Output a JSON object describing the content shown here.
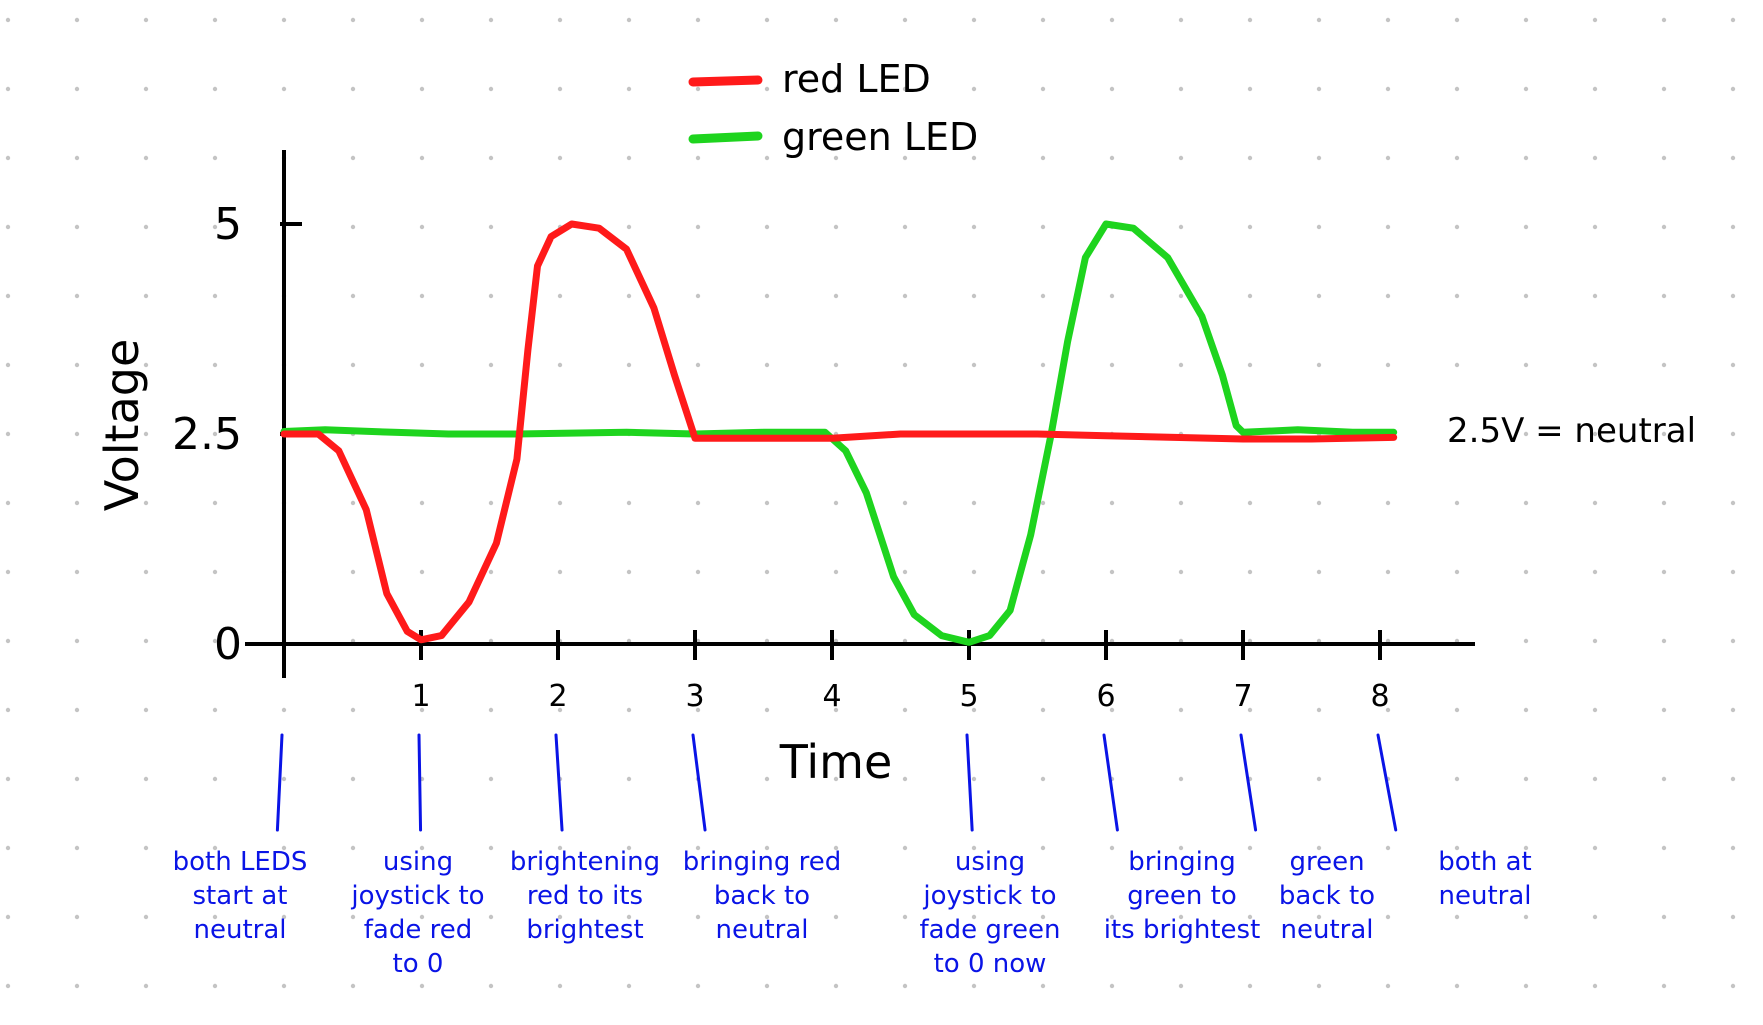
{
  "chart_data": {
    "type": "line",
    "title": "",
    "xlabel": "Time",
    "ylabel": "Voltage",
    "xlim": [
      0,
      8.5
    ],
    "ylim": [
      0,
      5
    ],
    "x_ticks": [
      {
        "value": 1,
        "label": "1"
      },
      {
        "value": 2,
        "label": "2"
      },
      {
        "value": 3,
        "label": "3"
      },
      {
        "value": 4,
        "label": "4"
      },
      {
        "value": 5,
        "label": "5"
      },
      {
        "value": 6,
        "label": "6"
      },
      {
        "value": 7,
        "label": "7"
      },
      {
        "value": 8,
        "label": "8"
      }
    ],
    "y_ticks": [
      {
        "value": 0,
        "label": "0"
      },
      {
        "value": 2.5,
        "label": "2.5"
      },
      {
        "value": 5,
        "label": "5"
      }
    ],
    "grid": "dotted",
    "legend": "top",
    "series": [
      {
        "name": "red LED",
        "color": "#ff1a1a",
        "points": [
          [
            0,
            2.5
          ],
          [
            0.25,
            2.5
          ],
          [
            0.4,
            2.3
          ],
          [
            0.6,
            1.6
          ],
          [
            0.75,
            0.6
          ],
          [
            0.9,
            0.15
          ],
          [
            1.0,
            0.05
          ],
          [
            1.15,
            0.1
          ],
          [
            1.35,
            0.5
          ],
          [
            1.55,
            1.2
          ],
          [
            1.7,
            2.2
          ],
          [
            1.78,
            3.5
          ],
          [
            1.85,
            4.5
          ],
          [
            1.95,
            4.85
          ],
          [
            2.1,
            5.0
          ],
          [
            2.3,
            4.95
          ],
          [
            2.5,
            4.7
          ],
          [
            2.7,
            4.0
          ],
          [
            2.85,
            3.2
          ],
          [
            2.95,
            2.7
          ],
          [
            3.0,
            2.45
          ],
          [
            3.5,
            2.45
          ],
          [
            4.0,
            2.45
          ],
          [
            4.5,
            2.5
          ],
          [
            5.0,
            2.5
          ],
          [
            5.5,
            2.5
          ],
          [
            6.0,
            2.48
          ],
          [
            6.5,
            2.46
          ],
          [
            7.0,
            2.44
          ],
          [
            7.5,
            2.44
          ],
          [
            8.1,
            2.46
          ]
        ]
      },
      {
        "name": "green LED",
        "color": "#1ed41e",
        "points": [
          [
            0,
            2.53
          ],
          [
            0.3,
            2.55
          ],
          [
            0.8,
            2.52
          ],
          [
            1.2,
            2.5
          ],
          [
            1.7,
            2.5
          ],
          [
            2.5,
            2.52
          ],
          [
            3.0,
            2.5
          ],
          [
            3.5,
            2.52
          ],
          [
            3.95,
            2.52
          ],
          [
            4.1,
            2.3
          ],
          [
            4.25,
            1.8
          ],
          [
            4.45,
            0.8
          ],
          [
            4.6,
            0.35
          ],
          [
            4.8,
            0.1
          ],
          [
            5.0,
            0.02
          ],
          [
            5.15,
            0.1
          ],
          [
            5.3,
            0.4
          ],
          [
            5.45,
            1.3
          ],
          [
            5.6,
            2.5
          ],
          [
            5.72,
            3.6
          ],
          [
            5.85,
            4.6
          ],
          [
            6.0,
            5.0
          ],
          [
            6.2,
            4.95
          ],
          [
            6.45,
            4.6
          ],
          [
            6.7,
            3.9
          ],
          [
            6.85,
            3.2
          ],
          [
            6.95,
            2.6
          ],
          [
            7.0,
            2.52
          ],
          [
            7.4,
            2.55
          ],
          [
            7.8,
            2.52
          ],
          [
            8.1,
            2.52
          ]
        ]
      }
    ],
    "annotations": [
      {
        "text": "2.5V = neutral",
        "color": "#000000"
      },
      {
        "x": 0,
        "lines": [
          "both LEDS",
          "start at",
          "neutral"
        ],
        "color": "#0a14e6"
      },
      {
        "x": 1,
        "lines": [
          "using",
          "joystick to",
          "fade red",
          "to 0"
        ],
        "color": "#0a14e6"
      },
      {
        "x": 2,
        "lines": [
          "brightening",
          "red to its",
          "brightest"
        ],
        "color": "#0a14e6"
      },
      {
        "x": 3,
        "lines": [
          "bringing red",
          "back to",
          "neutral"
        ],
        "color": "#0a14e6"
      },
      {
        "x": 5,
        "lines": [
          "using",
          "joystick to",
          "fade green",
          "to 0 now"
        ],
        "color": "#0a14e6"
      },
      {
        "x": 6,
        "lines": [
          "bringing",
          "green to",
          "its brightest"
        ],
        "color": "#0a14e6"
      },
      {
        "x": 7,
        "lines": [
          "green",
          "back to",
          "neutral"
        ],
        "color": "#0a14e6"
      },
      {
        "x": 8,
        "lines": [
          "both at",
          "neutral"
        ],
        "color": "#0a14e6"
      }
    ]
  }
}
